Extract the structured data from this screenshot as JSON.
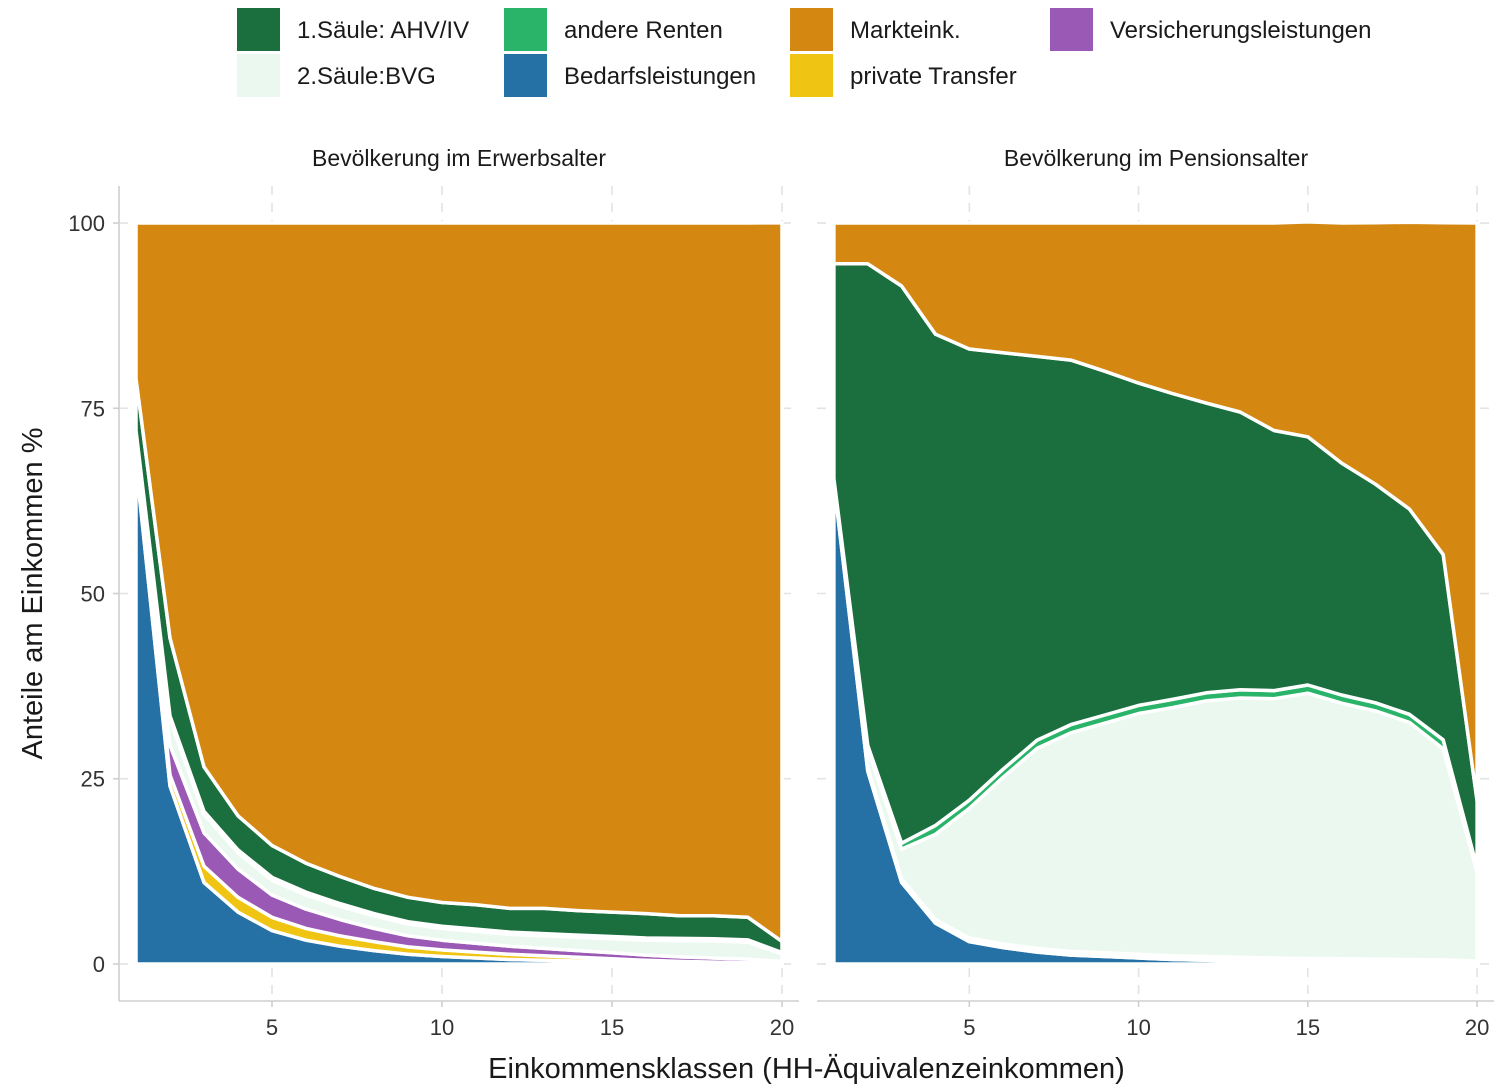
{
  "chart_data": {
    "type": "area",
    "stacked": true,
    "xlabel": "Einkommensklassen (HH-Äquivalenzeinkommen)",
    "ylabel": "Anteile am Einkommen %",
    "xlim": [
      0.5,
      20.5
    ],
    "ylim": [
      -5,
      105
    ],
    "x_ticks": [
      5,
      10,
      15,
      20
    ],
    "y_ticks": [
      0,
      25,
      50,
      75,
      100
    ],
    "grid": true,
    "legend_position": "top",
    "legend": [
      {
        "key": "ahv",
        "label": "1.Säule: AHV/IV",
        "color": "#1b6e3e"
      },
      {
        "key": "bvg",
        "label": "2.Säule:BVG",
        "color": "#eaf8ef"
      },
      {
        "key": "andere",
        "label": "andere Renten",
        "color": "#2ab469"
      },
      {
        "key": "bedarf",
        "label": "Bedarfsleistungen",
        "color": "#2570a5"
      },
      {
        "key": "markt",
        "label": "Markteink.",
        "color": "#d48812"
      },
      {
        "key": "privat",
        "label": "private Transfer",
        "color": "#f0c413"
      },
      {
        "key": "versich",
        "label": "Versicherungsleistungen",
        "color": "#9b59b6"
      }
    ],
    "stack_order": [
      "bedarf",
      "privat",
      "versich",
      "bvg",
      "andere",
      "ahv",
      "markt"
    ],
    "x": [
      1,
      2,
      3,
      4,
      5,
      6,
      7,
      8,
      9,
      10,
      11,
      12,
      13,
      14,
      15,
      16,
      17,
      18,
      19,
      20
    ],
    "panels": [
      {
        "title": "Bevölkerung im Erwerbsalter",
        "series": [
          {
            "key": "bedarf",
            "values": [
              67.5,
              24,
              11,
              7,
              4.5,
              3.2,
              2.4,
              1.8,
              1.3,
              1.0,
              0.8,
              0.6,
              0.5,
              0.4,
              0.3,
              0.2,
              0.15,
              0.1,
              0.05,
              0
            ]
          },
          {
            "key": "privat",
            "values": [
              0.5,
              1.5,
              2.2,
              2.0,
              1.8,
              1.6,
              1.4,
              1.2,
              1.0,
              0.9,
              0.8,
              0.7,
              0.6,
              0.5,
              0.4,
              0.3,
              0.2,
              0.15,
              0.1,
              0.05
            ]
          },
          {
            "key": "versich",
            "values": [
              0.5,
              4.0,
              4.5,
              3.8,
              3.0,
              2.6,
              2.2,
              1.8,
              1.5,
              1.3,
              1.2,
              1.1,
              1.0,
              0.9,
              0.8,
              0.7,
              0.6,
              0.55,
              0.5,
              0.3
            ]
          },
          {
            "key": "bvg",
            "values": [
              3,
              3.5,
              2.5,
              2.2,
              2.0,
              1.9,
              1.8,
              1.7,
              1.6,
              1.6,
              1.6,
              1.6,
              1.7,
              1.8,
              1.9,
              2.0,
              2.2,
              2.3,
              2.3,
              1.0
            ]
          },
          {
            "key": "andere",
            "values": [
              0.5,
              0.5,
              0.4,
              0.4,
              0.4,
              0.4,
              0.35,
              0.3,
              0.3,
              0.3,
              0.3,
              0.3,
              0.3,
              0.3,
              0.3,
              0.3,
              0.3,
              0.3,
              0.3,
              0.2
            ]
          },
          {
            "key": "ahv",
            "values": [
              7,
              10.5,
              6,
              4.6,
              4.3,
              3.9,
              3.65,
              3.4,
              3.3,
              3.2,
              3.3,
              3.2,
              3.4,
              3.3,
              3.3,
              3.3,
              3.05,
              3.1,
              3.05,
              1.5
            ]
          },
          {
            "key": "markt",
            "values": [
              21,
              56,
              73.4,
              80,
              84,
              86.4,
              88.2,
              89.8,
              91,
              91.7,
              92,
              92.5,
              92.5,
              92.8,
              93,
              93.2,
              93.5,
              93.5,
              93.7,
              97
            ]
          }
        ]
      },
      {
        "title": "Bevölkerung im Pensionsalter",
        "series": [
          {
            "key": "bedarf",
            "values": [
              65,
              26,
              11,
              5.5,
              3,
              2.2,
              1.6,
              1.2,
              1.0,
              0.8,
              0.6,
              0.5,
              0.4,
              0.3,
              0.25,
              0.2,
              0.15,
              0.1,
              0.05,
              0
            ]
          },
          {
            "key": "privat",
            "values": [
              0.3,
              0.3,
              0.3,
              0.3,
              0.3,
              0.3,
              0.3,
              0.3,
              0.3,
              0.3,
              0.3,
              0.3,
              0.3,
              0.3,
              0.3,
              0.3,
              0.3,
              0.3,
              0.3,
              0.3
            ]
          },
          {
            "key": "versich",
            "values": [
              0.2,
              0.2,
              0.2,
              0.2,
              0.2,
              0.2,
              0.2,
              0.2,
              0.2,
              0.2,
              0.2,
              0.2,
              0.2,
              0.2,
              0.2,
              0.2,
              0.2,
              0.2,
              0.2,
              0.1
            ]
          },
          {
            "key": "bvg",
            "values": [
              0,
              2.5,
              4,
              11.5,
              17.5,
              22.5,
              27,
              29.5,
              31,
              32.5,
              33.5,
              34.5,
              35,
              35,
              35.8,
              34.5,
              33.5,
              32,
              28.5,
              12
            ]
          },
          {
            "key": "andere",
            "values": [
              0,
              0.5,
              0.8,
              1.2,
              1.1,
              1.1,
              1.1,
              1.1,
              1.1,
              1.1,
              1.1,
              1.1,
              1.1,
              1.1,
              1.1,
              1.1,
              1.1,
              1.1,
              1.2,
              0.6
            ]
          },
          {
            "key": "ahv",
            "values": [
              29,
              65.0,
              75.2,
              66.3,
              60.9,
              56.2,
              51.8,
              49.2,
              46.4,
              43.5,
              41.3,
              39.1,
              37.5,
              35.1,
              33.5,
              31.3,
              29.5,
              27.7,
              25.0,
              9.0
            ]
          },
          {
            "key": "markt",
            "values": [
              5.5,
              5.5,
              8.5,
              15,
              17,
              17.5,
              18,
              18.5,
              20,
              21.6,
              23,
              24.3,
              25.5,
              28,
              29,
              32.4,
              35.3,
              38.7,
              44.8,
              78
            ]
          }
        ]
      }
    ]
  }
}
